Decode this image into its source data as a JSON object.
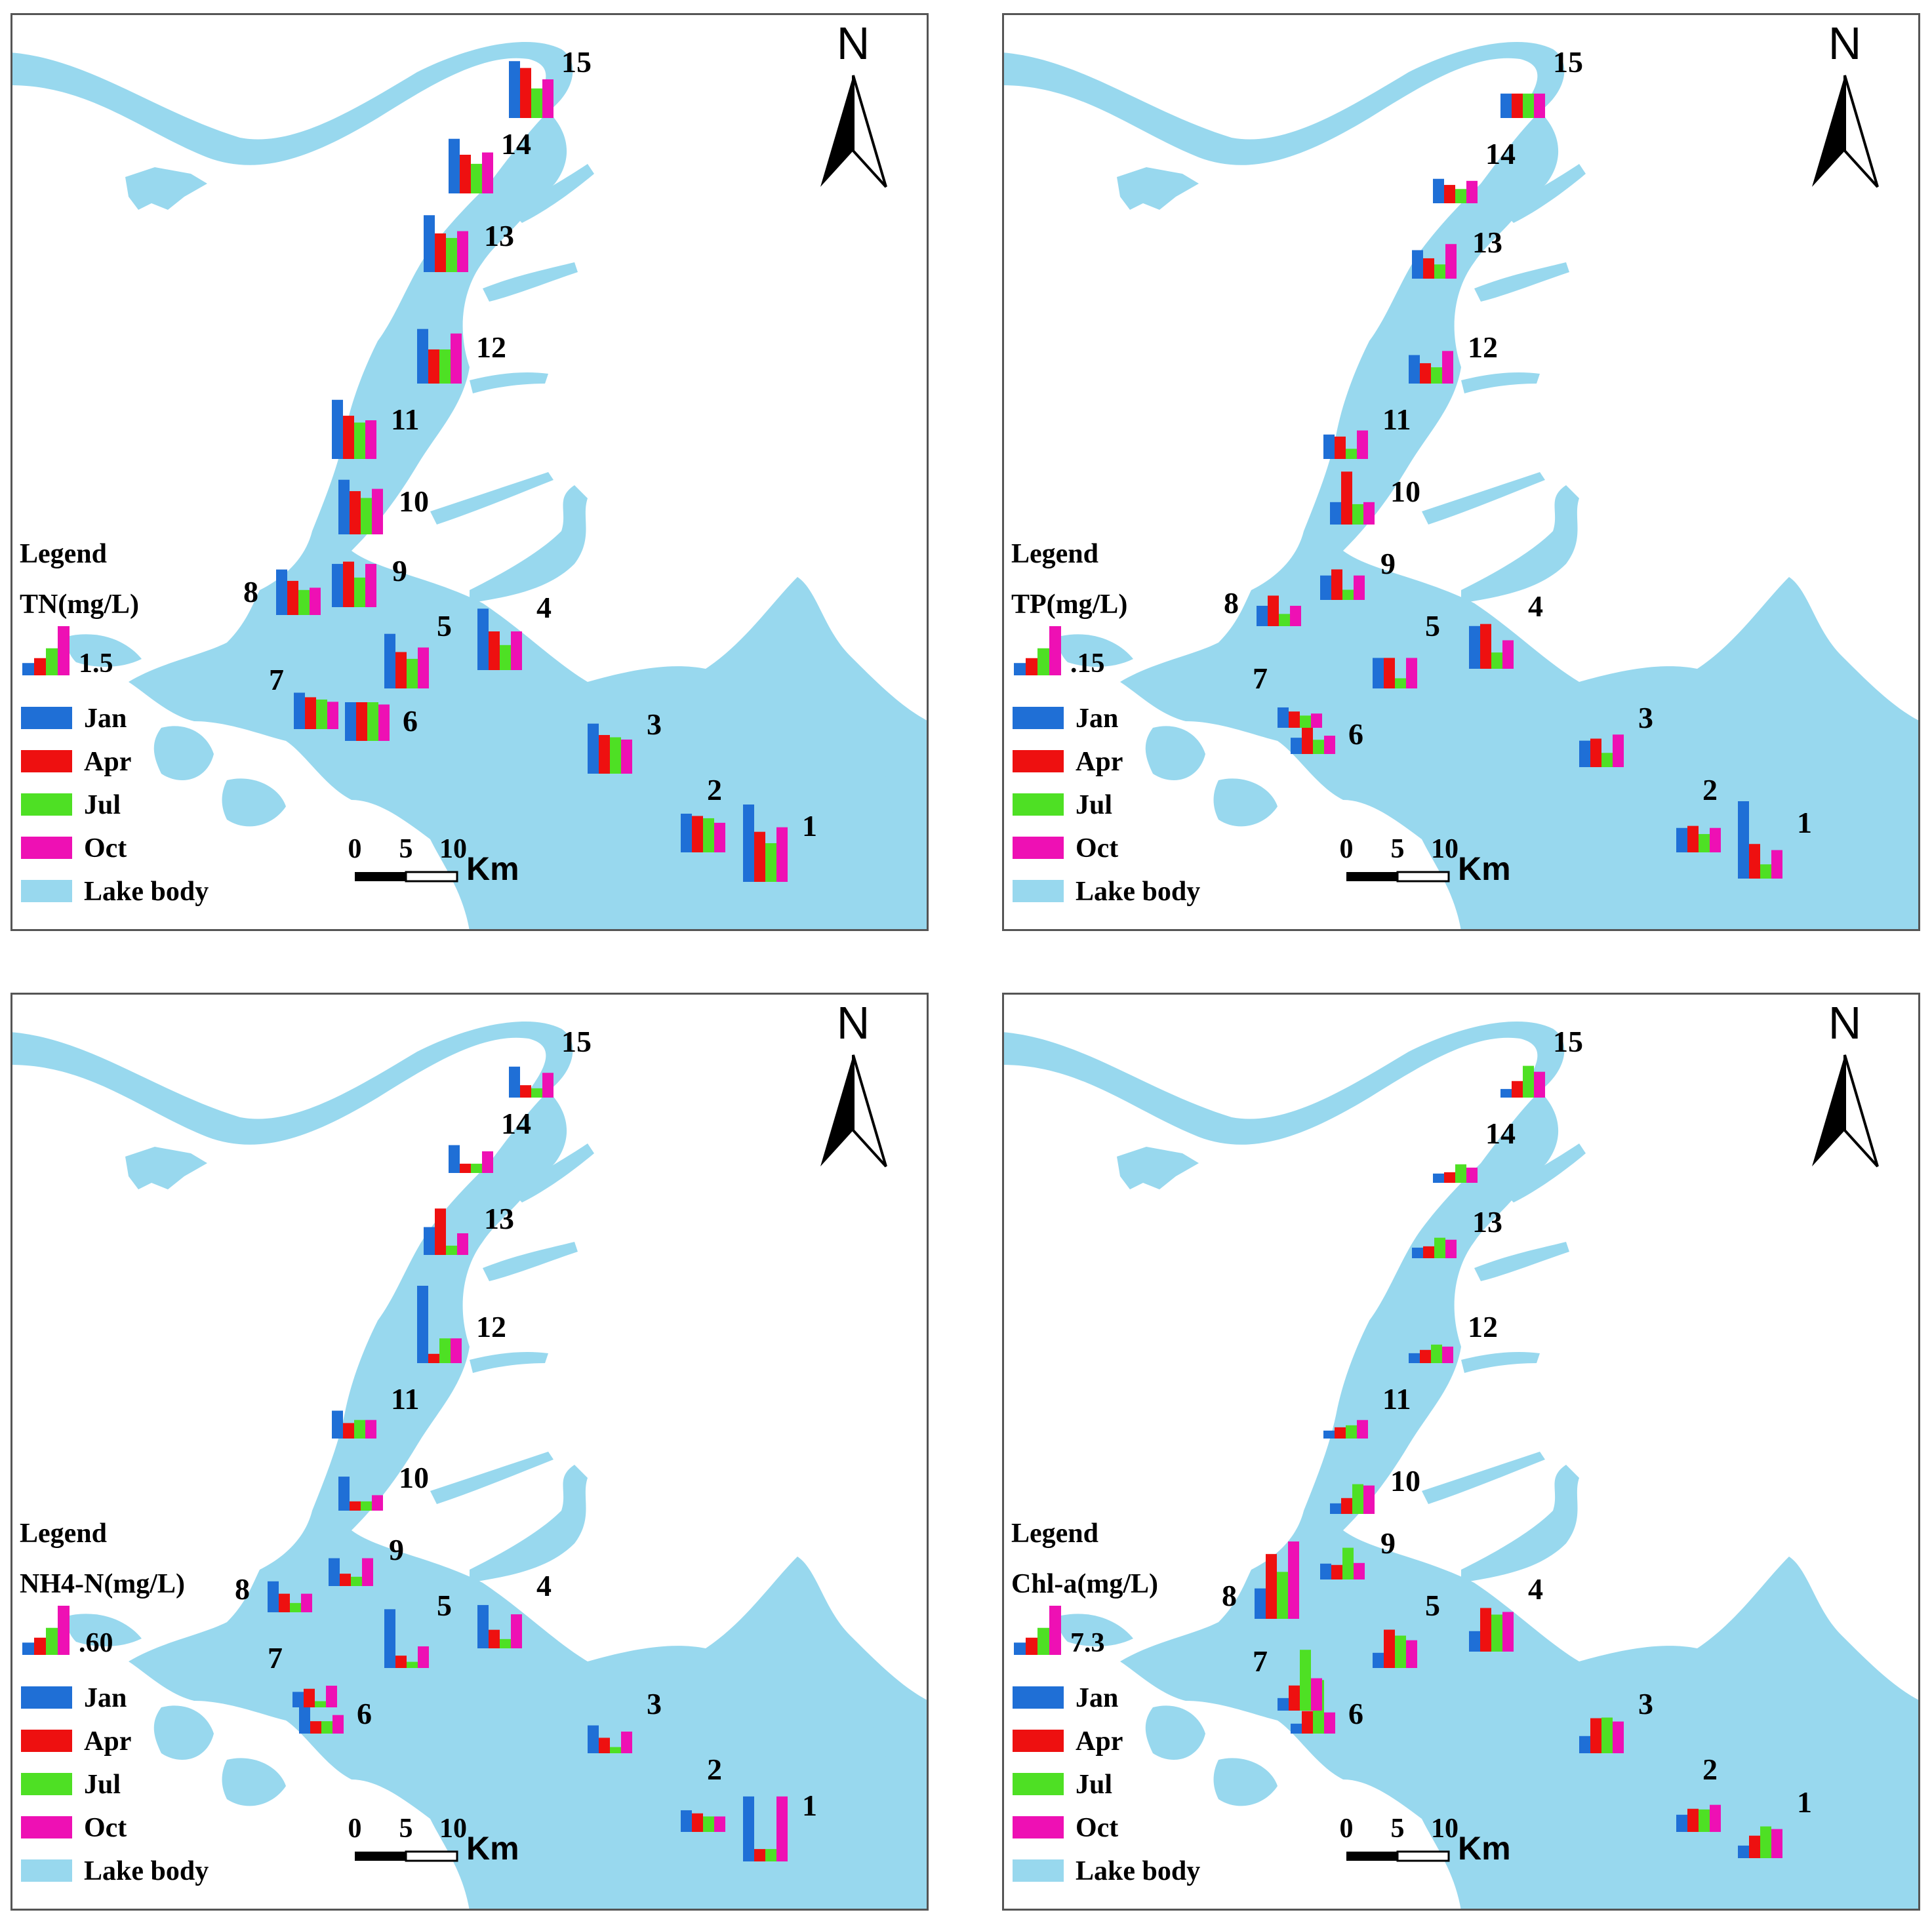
{
  "figure": {
    "colors": {
      "Jan": "#1f6fd6",
      "Apr": "#ee1010",
      "Jul": "#4ee024",
      "Oct": "#ee10b4",
      "lake": "#98d8ee",
      "frame": "#555555"
    },
    "months": [
      "Jan",
      "Apr",
      "Jul",
      "Oct"
    ],
    "lake_body_label": "Lake body",
    "legend_title": "Legend",
    "north_label": "N",
    "scale": {
      "ticks": [
        "0",
        "5",
        "10"
      ],
      "unit": "Km"
    }
  },
  "panels": [
    {
      "id": "tn",
      "variable_label": "TN(mg/L)",
      "reference_value_label": "1.5",
      "sites": [
        {
          "id": "1",
          "values": [
            3.4,
            2.2,
            1.7,
            2.4
          ]
        },
        {
          "id": "2",
          "values": [
            1.7,
            1.6,
            1.5,
            1.3
          ]
        },
        {
          "id": "3",
          "values": [
            2.2,
            1.7,
            1.6,
            1.5
          ]
        },
        {
          "id": "4",
          "values": [
            2.7,
            1.7,
            1.1,
            1.7
          ]
        },
        {
          "id": "5",
          "values": [
            2.4,
            1.6,
            1.3,
            1.8
          ]
        },
        {
          "id": "6",
          "values": [
            1.7,
            1.7,
            1.7,
            1.6
          ]
        },
        {
          "id": "7",
          "values": [
            1.6,
            1.4,
            1.3,
            1.2
          ]
        },
        {
          "id": "8",
          "values": [
            2.0,
            1.5,
            1.1,
            1.2
          ]
        },
        {
          "id": "9",
          "values": [
            1.9,
            2.0,
            1.3,
            1.9
          ]
        },
        {
          "id": "10",
          "values": [
            2.4,
            1.9,
            1.6,
            2.0
          ]
        },
        {
          "id": "11",
          "values": [
            2.6,
            1.9,
            1.6,
            1.7
          ]
        },
        {
          "id": "12",
          "values": [
            2.4,
            1.5,
            1.5,
            2.2
          ]
        },
        {
          "id": "13",
          "values": [
            2.5,
            1.7,
            1.5,
            1.8
          ]
        },
        {
          "id": "14",
          "values": [
            2.4,
            1.7,
            1.3,
            1.8
          ]
        },
        {
          "id": "15",
          "values": [
            2.5,
            2.2,
            1.3,
            1.7
          ]
        }
      ]
    },
    {
      "id": "tp",
      "variable_label": "TP(mg/L)",
      "reference_value_label": ".15",
      "sites": [
        {
          "id": "1",
          "values": [
            0.38,
            0.17,
            0.07,
            0.14
          ]
        },
        {
          "id": "2",
          "values": [
            0.12,
            0.13,
            0.09,
            0.12
          ]
        },
        {
          "id": "3",
          "values": [
            0.13,
            0.14,
            0.07,
            0.16
          ]
        },
        {
          "id": "4",
          "values": [
            0.21,
            0.22,
            0.08,
            0.14
          ]
        },
        {
          "id": "5",
          "values": [
            0.15,
            0.15,
            0.05,
            0.15
          ]
        },
        {
          "id": "6",
          "values": [
            0.08,
            0.13,
            0.07,
            0.09
          ]
        },
        {
          "id": "7",
          "values": [
            0.1,
            0.08,
            0.06,
            0.07
          ]
        },
        {
          "id": "8",
          "values": [
            0.1,
            0.15,
            0.06,
            0.1
          ]
        },
        {
          "id": "9",
          "values": [
            0.12,
            0.15,
            0.05,
            0.12
          ]
        },
        {
          "id": "10",
          "values": [
            0.11,
            0.26,
            0.1,
            0.11
          ]
        },
        {
          "id": "11",
          "values": [
            0.12,
            0.11,
            0.05,
            0.14
          ]
        },
        {
          "id": "12",
          "values": [
            0.14,
            0.1,
            0.08,
            0.16
          ]
        },
        {
          "id": "13",
          "values": [
            0.14,
            0.1,
            0.07,
            0.17
          ]
        },
        {
          "id": "14",
          "values": [
            0.12,
            0.09,
            0.07,
            0.11
          ]
        },
        {
          "id": "15",
          "values": [
            0.12,
            0.12,
            0.12,
            0.12
          ]
        }
      ]
    },
    {
      "id": "nh4",
      "variable_label": "NH4-N(mg/L)",
      "reference_value_label": ".60",
      "sites": [
        {
          "id": "1",
          "values": [
            2.1,
            0.4,
            0.4,
            2.1
          ]
        },
        {
          "id": "2",
          "values": [
            0.7,
            0.6,
            0.5,
            0.5
          ]
        },
        {
          "id": "3",
          "values": [
            0.9,
            0.5,
            0.2,
            0.7
          ]
        },
        {
          "id": "4",
          "values": [
            1.4,
            0.6,
            0.3,
            1.1
          ]
        },
        {
          "id": "5",
          "values": [
            1.9,
            0.4,
            0.2,
            0.7
          ]
        },
        {
          "id": "6",
          "values": [
            0.9,
            0.4,
            0.4,
            0.6
          ]
        },
        {
          "id": "7",
          "values": [
            0.5,
            0.6,
            0.2,
            0.7
          ]
        },
        {
          "id": "8",
          "values": [
            1.0,
            0.6,
            0.3,
            0.6
          ]
        },
        {
          "id": "9",
          "values": [
            0.9,
            0.4,
            0.3,
            0.9
          ]
        },
        {
          "id": "10",
          "values": [
            1.1,
            0.3,
            0.3,
            0.5
          ]
        },
        {
          "id": "11",
          "values": [
            0.9,
            0.5,
            0.6,
            0.6
          ]
        },
        {
          "id": "12",
          "values": [
            2.5,
            0.3,
            0.8,
            0.8
          ]
        },
        {
          "id": "13",
          "values": [
            0.9,
            1.5,
            0.3,
            0.7
          ]
        },
        {
          "id": "14",
          "values": [
            0.9,
            0.3,
            0.3,
            0.7
          ]
        },
        {
          "id": "15",
          "values": [
            1.0,
            0.4,
            0.3,
            0.8
          ]
        }
      ]
    },
    {
      "id": "chla",
      "variable_label": "Chl-a(mg/L)",
      "reference_value_label": "7.3",
      "sites": [
        {
          "id": "1",
          "values": [
            1.9,
            3.4,
            4.8,
            4.4
          ]
        },
        {
          "id": "2",
          "values": [
            2.6,
            3.5,
            3.4,
            4.1
          ]
        },
        {
          "id": "3",
          "values": [
            2.6,
            5.3,
            5.4,
            4.8
          ]
        },
        {
          "id": "4",
          "values": [
            3.1,
            6.6,
            5.6,
            6.0
          ]
        },
        {
          "id": "5",
          "values": [
            2.3,
            5.8,
            4.9,
            4.2
          ]
        },
        {
          "id": "6",
          "values": [
            1.5,
            3.4,
            8.1,
            3.2
          ]
        },
        {
          "id": "7",
          "values": [
            1.9,
            3.8,
            9.2,
            4.9
          ]
        },
        {
          "id": "8",
          "values": [
            4.6,
            9.8,
            7.1,
            11.7
          ]
        },
        {
          "id": "9",
          "values": [
            2.4,
            2.2,
            4.8,
            2.5
          ]
        },
        {
          "id": "10",
          "values": [
            1.6,
            2.4,
            4.5,
            4.3
          ]
        },
        {
          "id": "11",
          "values": [
            1.2,
            1.7,
            2.0,
            2.8
          ]
        },
        {
          "id": "12",
          "values": [
            1.5,
            2.0,
            2.8,
            2.5
          ]
        },
        {
          "id": "13",
          "values": [
            1.6,
            1.8,
            3.1,
            2.8
          ]
        },
        {
          "id": "14",
          "values": [
            1.4,
            1.6,
            2.8,
            2.3
          ]
        },
        {
          "id": "15",
          "values": [
            1.3,
            2.5,
            4.8,
            3.9
          ]
        }
      ]
    }
  ]
}
